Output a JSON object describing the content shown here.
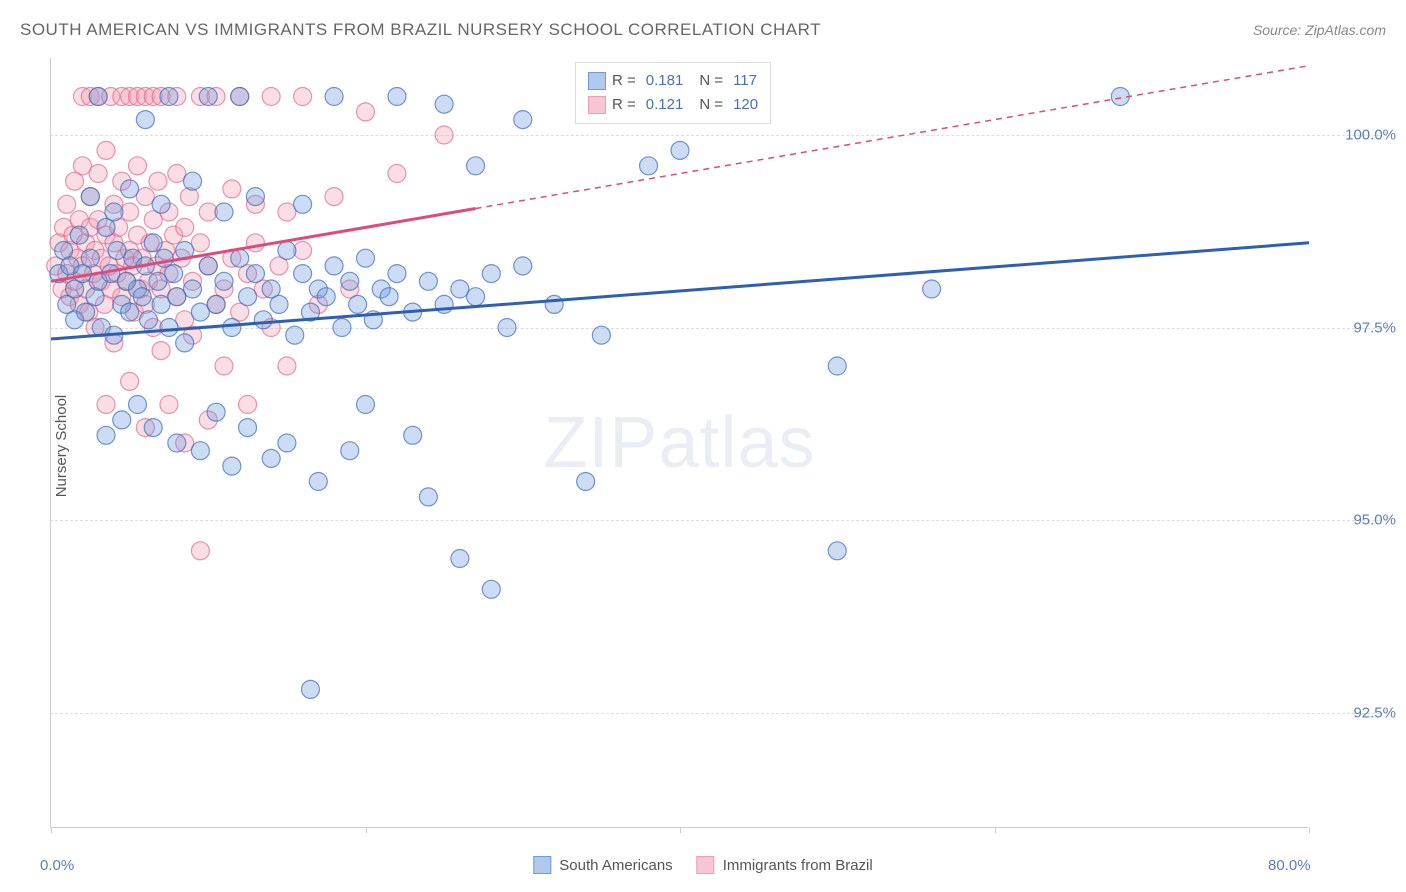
{
  "title": "SOUTH AMERICAN VS IMMIGRANTS FROM BRAZIL NURSERY SCHOOL CORRELATION CHART",
  "source_label": "Source: ZipAtlas.com",
  "y_axis_label": "Nursery School",
  "watermark": "ZIPatlas",
  "chart": {
    "type": "scatter",
    "xlim": [
      0,
      80
    ],
    "ylim": [
      91.0,
      101.0
    ],
    "x_ticks": [
      0,
      20,
      40,
      60,
      80
    ],
    "x_tick_labels": [
      "0.0%",
      "",
      "",
      "",
      "80.0%"
    ],
    "y_ticks": [
      92.5,
      95.0,
      97.5,
      100.0
    ],
    "y_tick_labels": [
      "92.5%",
      "95.0%",
      "97.5%",
      "100.0%"
    ],
    "grid_color": "#dddddd",
    "axis_color": "#cccccc",
    "tick_label_color": "#5b7dba",
    "tick_fontsize": 15,
    "marker_radius": 9,
    "marker_fill_opacity": 0.35,
    "marker_stroke_opacity": 0.7,
    "marker_stroke_width": 1.2,
    "trend_line_width": 3,
    "series": [
      {
        "name": "South Americans",
        "color_fill": "#6a9ae0",
        "color_stroke": "#3f6bb5",
        "line_color": "#2e5fb0",
        "trend": {
          "x1": 0,
          "y1": 97.35,
          "x2": 80,
          "y2": 98.6,
          "dashed_from_x": null
        },
        "R": "0.181",
        "N": "117",
        "points": [
          [
            0.5,
            98.2
          ],
          [
            0.8,
            98.5
          ],
          [
            1.0,
            97.8
          ],
          [
            1.2,
            98.3
          ],
          [
            1.5,
            98.0
          ],
          [
            1.5,
            97.6
          ],
          [
            1.8,
            98.7
          ],
          [
            2.0,
            98.2
          ],
          [
            2.2,
            97.7
          ],
          [
            2.5,
            98.4
          ],
          [
            2.5,
            99.2
          ],
          [
            2.8,
            97.9
          ],
          [
            3.0,
            98.1
          ],
          [
            3.0,
            100.5
          ],
          [
            3.2,
            97.5
          ],
          [
            3.5,
            98.8
          ],
          [
            3.5,
            96.1
          ],
          [
            3.8,
            98.2
          ],
          [
            4.0,
            97.4
          ],
          [
            4.0,
            99.0
          ],
          [
            4.2,
            98.5
          ],
          [
            4.5,
            97.8
          ],
          [
            4.5,
            96.3
          ],
          [
            4.8,
            98.1
          ],
          [
            5.0,
            97.7
          ],
          [
            5.0,
            99.3
          ],
          [
            5.2,
            98.4
          ],
          [
            5.5,
            98.0
          ],
          [
            5.5,
            96.5
          ],
          [
            5.8,
            97.9
          ],
          [
            6.0,
            98.3
          ],
          [
            6.0,
            100.2
          ],
          [
            6.2,
            97.6
          ],
          [
            6.5,
            98.6
          ],
          [
            6.5,
            96.2
          ],
          [
            6.8,
            98.1
          ],
          [
            7.0,
            97.8
          ],
          [
            7.0,
            99.1
          ],
          [
            7.2,
            98.4
          ],
          [
            7.5,
            97.5
          ],
          [
            7.5,
            100.5
          ],
          [
            7.8,
            98.2
          ],
          [
            8.0,
            97.9
          ],
          [
            8.0,
            96.0
          ],
          [
            8.5,
            98.5
          ],
          [
            8.5,
            97.3
          ],
          [
            9.0,
            98.0
          ],
          [
            9.0,
            99.4
          ],
          [
            9.5,
            97.7
          ],
          [
            9.5,
            95.9
          ],
          [
            10.0,
            98.3
          ],
          [
            10.0,
            100.5
          ],
          [
            10.5,
            97.8
          ],
          [
            10.5,
            96.4
          ],
          [
            11.0,
            98.1
          ],
          [
            11.0,
            99.0
          ],
          [
            11.5,
            97.5
          ],
          [
            11.5,
            95.7
          ],
          [
            12.0,
            98.4
          ],
          [
            12.0,
            100.5
          ],
          [
            12.5,
            97.9
          ],
          [
            12.5,
            96.2
          ],
          [
            13.0,
            98.2
          ],
          [
            13.0,
            99.2
          ],
          [
            13.5,
            97.6
          ],
          [
            14.0,
            98.0
          ],
          [
            14.0,
            95.8
          ],
          [
            14.5,
            97.8
          ],
          [
            15.0,
            98.5
          ],
          [
            15.0,
            96.0
          ],
          [
            15.5,
            97.4
          ],
          [
            16.0,
            98.2
          ],
          [
            16.0,
            99.1
          ],
          [
            16.5,
            97.7
          ],
          [
            16.5,
            92.8
          ],
          [
            17.0,
            98.0
          ],
          [
            17.0,
            95.5
          ],
          [
            17.5,
            97.9
          ],
          [
            18.0,
            98.3
          ],
          [
            18.0,
            100.5
          ],
          [
            18.5,
            97.5
          ],
          [
            19.0,
            98.1
          ],
          [
            19.0,
            95.9
          ],
          [
            19.5,
            97.8
          ],
          [
            20.0,
            98.4
          ],
          [
            20.0,
            96.5
          ],
          [
            20.5,
            97.6
          ],
          [
            21.0,
            98.0
          ],
          [
            21.5,
            97.9
          ],
          [
            22.0,
            98.2
          ],
          [
            22.0,
            100.5
          ],
          [
            23.0,
            97.7
          ],
          [
            23.0,
            96.1
          ],
          [
            24.0,
            98.1
          ],
          [
            24.0,
            95.3
          ],
          [
            25.0,
            97.8
          ],
          [
            25.0,
            100.4
          ],
          [
            26.0,
            98.0
          ],
          [
            26.0,
            94.5
          ],
          [
            27.0,
            97.9
          ],
          [
            27.0,
            99.6
          ],
          [
            28.0,
            98.2
          ],
          [
            28.0,
            94.1
          ],
          [
            29.0,
            97.5
          ],
          [
            30.0,
            98.3
          ],
          [
            30.0,
            100.2
          ],
          [
            32.0,
            97.8
          ],
          [
            34.0,
            95.5
          ],
          [
            35.0,
            97.4
          ],
          [
            36.0,
            100.4
          ],
          [
            38.0,
            99.6
          ],
          [
            40.0,
            99.8
          ],
          [
            42.0,
            100.4
          ],
          [
            50.0,
            97.0
          ],
          [
            50.0,
            94.6
          ],
          [
            56.0,
            98.0
          ],
          [
            68.0,
            100.5
          ]
        ]
      },
      {
        "name": "Immigrants from Brazil",
        "color_fill": "#f29db5",
        "color_stroke": "#e06a8c",
        "line_color": "#e04a7a",
        "trend": {
          "x1": 0,
          "y1": 98.1,
          "x2": 80,
          "y2": 100.9,
          "dashed_from_x": 27
        },
        "R": "0.121",
        "N": "120",
        "points": [
          [
            0.3,
            98.3
          ],
          [
            0.5,
            98.6
          ],
          [
            0.7,
            98.0
          ],
          [
            0.8,
            98.8
          ],
          [
            1.0,
            98.2
          ],
          [
            1.0,
            99.1
          ],
          [
            1.2,
            97.9
          ],
          [
            1.2,
            98.5
          ],
          [
            1.4,
            98.7
          ],
          [
            1.5,
            98.1
          ],
          [
            1.5,
            99.4
          ],
          [
            1.7,
            98.4
          ],
          [
            1.8,
            97.8
          ],
          [
            1.8,
            98.9
          ],
          [
            2.0,
            98.3
          ],
          [
            2.0,
            99.6
          ],
          [
            2.0,
            100.5
          ],
          [
            2.2,
            98.0
          ],
          [
            2.2,
            98.6
          ],
          [
            2.4,
            97.7
          ],
          [
            2.5,
            98.8
          ],
          [
            2.5,
            99.2
          ],
          [
            2.5,
            100.5
          ],
          [
            2.7,
            98.2
          ],
          [
            2.8,
            98.5
          ],
          [
            2.8,
            97.5
          ],
          [
            3.0,
            98.9
          ],
          [
            3.0,
            99.5
          ],
          [
            3.0,
            100.5
          ],
          [
            3.2,
            98.1
          ],
          [
            3.2,
            98.4
          ],
          [
            3.4,
            97.8
          ],
          [
            3.5,
            98.7
          ],
          [
            3.5,
            99.8
          ],
          [
            3.5,
            96.5
          ],
          [
            3.7,
            98.3
          ],
          [
            3.8,
            98.0
          ],
          [
            3.8,
            100.5
          ],
          [
            4.0,
            98.6
          ],
          [
            4.0,
            99.1
          ],
          [
            4.0,
            97.3
          ],
          [
            4.2,
            98.2
          ],
          [
            4.3,
            98.8
          ],
          [
            4.5,
            97.9
          ],
          [
            4.5,
            99.4
          ],
          [
            4.5,
            100.5
          ],
          [
            4.7,
            98.4
          ],
          [
            4.8,
            98.1
          ],
          [
            5.0,
            98.5
          ],
          [
            5.0,
            99.0
          ],
          [
            5.0,
            96.8
          ],
          [
            5.0,
            100.5
          ],
          [
            5.2,
            98.3
          ],
          [
            5.3,
            97.7
          ],
          [
            5.5,
            98.7
          ],
          [
            5.5,
            99.6
          ],
          [
            5.5,
            100.5
          ],
          [
            5.7,
            98.0
          ],
          [
            5.8,
            98.4
          ],
          [
            6.0,
            97.8
          ],
          [
            6.0,
            99.2
          ],
          [
            6.0,
            96.2
          ],
          [
            6.0,
            100.5
          ],
          [
            6.2,
            98.1
          ],
          [
            6.3,
            98.6
          ],
          [
            6.5,
            97.5
          ],
          [
            6.5,
            98.9
          ],
          [
            6.5,
            100.5
          ],
          [
            6.7,
            98.3
          ],
          [
            6.8,
            99.4
          ],
          [
            7.0,
            98.0
          ],
          [
            7.0,
            97.2
          ],
          [
            7.0,
            100.5
          ],
          [
            7.3,
            98.5
          ],
          [
            7.5,
            98.2
          ],
          [
            7.5,
            99.0
          ],
          [
            7.5,
            96.5
          ],
          [
            7.8,
            98.7
          ],
          [
            8.0,
            97.9
          ],
          [
            8.0,
            99.5
          ],
          [
            8.0,
            100.5
          ],
          [
            8.3,
            98.4
          ],
          [
            8.5,
            97.6
          ],
          [
            8.5,
            98.8
          ],
          [
            8.5,
            96.0
          ],
          [
            8.8,
            99.2
          ],
          [
            9.0,
            98.1
          ],
          [
            9.0,
            97.4
          ],
          [
            9.5,
            98.6
          ],
          [
            9.5,
            100.5
          ],
          [
            9.5,
            94.6
          ],
          [
            10.0,
            98.3
          ],
          [
            10.0,
            99.0
          ],
          [
            10.0,
            96.3
          ],
          [
            10.5,
            97.8
          ],
          [
            10.5,
            100.5
          ],
          [
            11.0,
            98.0
          ],
          [
            11.0,
            97.0
          ],
          [
            11.5,
            98.4
          ],
          [
            11.5,
            99.3
          ],
          [
            12.0,
            97.7
          ],
          [
            12.0,
            100.5
          ],
          [
            12.5,
            98.2
          ],
          [
            12.5,
            96.5
          ],
          [
            13.0,
            98.6
          ],
          [
            13.0,
            99.1
          ],
          [
            13.5,
            98.0
          ],
          [
            14.0,
            97.5
          ],
          [
            14.0,
            100.5
          ],
          [
            14.5,
            98.3
          ],
          [
            15.0,
            99.0
          ],
          [
            15.0,
            97.0
          ],
          [
            16.0,
            98.5
          ],
          [
            16.0,
            100.5
          ],
          [
            17.0,
            97.8
          ],
          [
            18.0,
            99.2
          ],
          [
            19.0,
            98.0
          ],
          [
            20.0,
            100.3
          ],
          [
            22.0,
            99.5
          ],
          [
            25.0,
            100.0
          ]
        ]
      }
    ]
  },
  "legend_stats": {
    "rows": [
      {
        "swatch_fill": "#b0c9ed",
        "swatch_stroke": "#6a9ae0",
        "R_label": "R =",
        "R": "0.181",
        "N_label": "N =",
        "N": "117"
      },
      {
        "swatch_fill": "#f7c6d4",
        "swatch_stroke": "#f29db5",
        "R_label": "R =",
        "R": "0.121",
        "N_label": "N =",
        "N": "120"
      }
    ]
  },
  "bottom_legend": {
    "items": [
      {
        "label": "South Americans",
        "swatch_fill": "#b0c9ed",
        "swatch_stroke": "#6a9ae0"
      },
      {
        "label": "Immigrants from Brazil",
        "swatch_fill": "#f7c6d4",
        "swatch_stroke": "#f29db5"
      }
    ]
  }
}
